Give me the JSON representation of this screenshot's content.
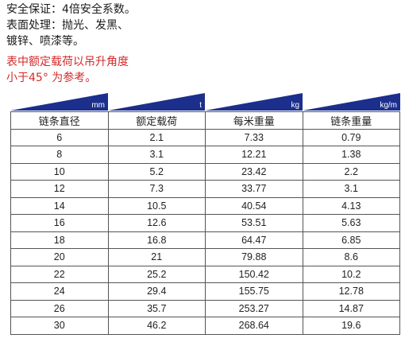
{
  "notes": {
    "safety": "安全保证：4倍安全系数。",
    "surface_1": "表面处理：抛光、发黑、",
    "surface_2": "镀锌、喷漆等。",
    "warning_1": "表中额定载荷以吊升角度",
    "warning_2": "小于45°  为参考。"
  },
  "colors": {
    "unit_header": "#1c2f8c",
    "warning_text": "#d42a2a"
  },
  "units": [
    "mm",
    "t",
    "kg",
    "kg/m"
  ],
  "table": {
    "headers": [
      "链条直径",
      "额定载荷",
      "每米重量",
      "链条重量"
    ],
    "rows": [
      [
        "6",
        "2.1",
        "7.33",
        "0.79"
      ],
      [
        "8",
        "3.1",
        "12.21",
        "1.38"
      ],
      [
        "10",
        "5.2",
        "23.42",
        "2.2"
      ],
      [
        "12",
        "7.3",
        "33.77",
        "3.1"
      ],
      [
        "14",
        "10.5",
        "40.54",
        "4.13"
      ],
      [
        "16",
        "12.6",
        "53.51",
        "5.63"
      ],
      [
        "18",
        "16.8",
        "64.47",
        "6.85"
      ],
      [
        "20",
        "21",
        "79.88",
        "8.6"
      ],
      [
        "22",
        "25.2",
        "150.42",
        "10.2"
      ],
      [
        "24",
        "29.4",
        "155.75",
        "12.78"
      ],
      [
        "26",
        "35.7",
        "253.27",
        "14.87"
      ],
      [
        "30",
        "46.2",
        "268.64",
        "19.6"
      ]
    ]
  }
}
